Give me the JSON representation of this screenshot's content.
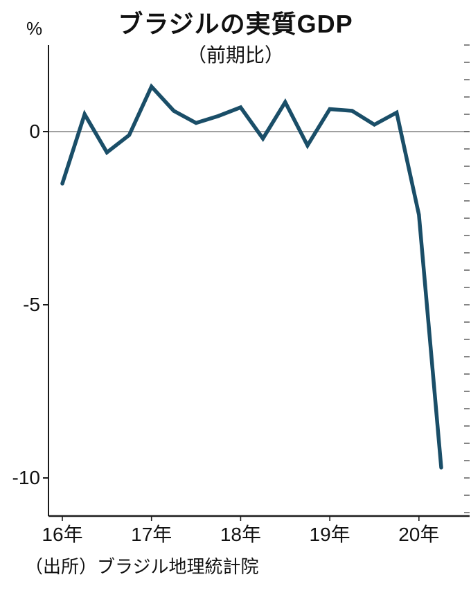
{
  "title": "ブラジルの実質GDP",
  "subtitle": "（前期比）",
  "y_unit": "%",
  "source": "（出所）ブラジル地理統計院",
  "chart_data": {
    "type": "line",
    "title": "ブラジルの実質GDP",
    "subtitle": "（前期比）",
    "ylabel": "%",
    "x": [
      "2016Q1",
      "2016Q2",
      "2016Q3",
      "2016Q4",
      "2017Q1",
      "2017Q2",
      "2017Q3",
      "2017Q4",
      "2018Q1",
      "2018Q2",
      "2018Q3",
      "2018Q4",
      "2019Q1",
      "2019Q2",
      "2019Q3",
      "2019Q4",
      "2020Q1",
      "2020Q2"
    ],
    "values": [
      -1.5,
      0.5,
      -0.6,
      -0.1,
      1.3,
      0.6,
      0.25,
      0.45,
      0.7,
      -0.2,
      0.85,
      -0.4,
      0.65,
      0.6,
      0.2,
      0.55,
      -2.4,
      -9.7
    ],
    "ylim": [
      -11.1,
      2.5
    ],
    "yticks": [
      {
        "label": "0",
        "value": 0
      },
      {
        "label": "-5",
        "value": -5
      },
      {
        "label": "-10",
        "value": -10
      }
    ],
    "minor_tick_step": 0.5,
    "x_year_labels": [
      {
        "label": "16年",
        "index": 0
      },
      {
        "label": "17年",
        "index": 4
      },
      {
        "label": "18年",
        "index": 8
      },
      {
        "label": "19年",
        "index": 12
      },
      {
        "label": "20年",
        "index": 16
      }
    ],
    "grid": "zero-line-only",
    "legend": "none",
    "line_color": "#1a4e68",
    "axis_color": "#1a1a1a",
    "zero_line_color": "#808080"
  }
}
